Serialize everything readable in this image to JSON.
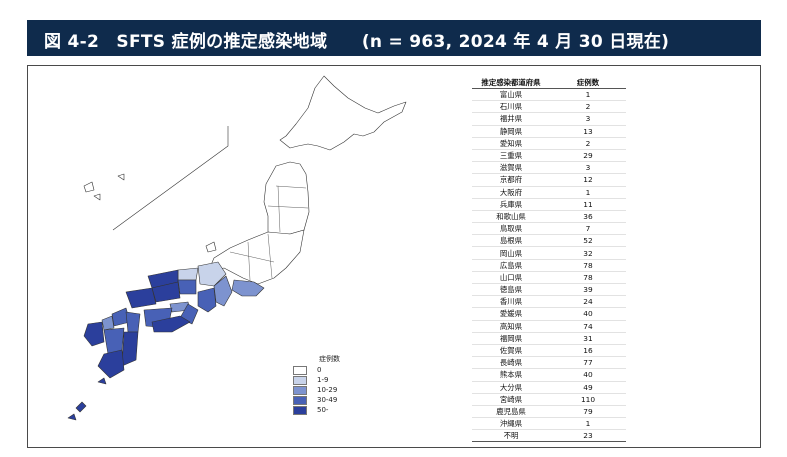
{
  "header": {
    "title": "図 4-2　SFTS 症例の推定感染地域　　(n = 963,  2024 年 4 月 30 日現在)"
  },
  "colors": {
    "header_bg": "#0f2b4c",
    "c0": "#ffffff",
    "c1": "#c8d3ea",
    "c2": "#7d93cf",
    "c3": "#4861b6",
    "c4": "#2b3f9c"
  },
  "legend": {
    "title": "症例数",
    "items": [
      {
        "label": "0",
        "color": "#ffffff"
      },
      {
        "label": "1-9",
        "color": "#c8d3ea"
      },
      {
        "label": "10-29",
        "color": "#7d93cf"
      },
      {
        "label": "30-49",
        "color": "#4861b6"
      },
      {
        "label": "50-",
        "color": "#2b3f9c"
      }
    ]
  },
  "table": {
    "headers": [
      "推定感染都道府県",
      "症例数"
    ],
    "rows": [
      [
        "富山県",
        "1"
      ],
      [
        "石川県",
        "2"
      ],
      [
        "福井県",
        "3"
      ],
      [
        "静岡県",
        "13"
      ],
      [
        "愛知県",
        "2"
      ],
      [
        "三重県",
        "29"
      ],
      [
        "滋賀県",
        "3"
      ],
      [
        "京都府",
        "12"
      ],
      [
        "大阪府",
        "1"
      ],
      [
        "兵庫県",
        "11"
      ],
      [
        "和歌山県",
        "36"
      ],
      [
        "鳥取県",
        "7"
      ],
      [
        "島根県",
        "52"
      ],
      [
        "岡山県",
        "32"
      ],
      [
        "広島県",
        "78"
      ],
      [
        "山口県",
        "78"
      ],
      [
        "徳島県",
        "39"
      ],
      [
        "香川県",
        "24"
      ],
      [
        "愛媛県",
        "40"
      ],
      [
        "高知県",
        "74"
      ],
      [
        "福岡県",
        "31"
      ],
      [
        "佐賀県",
        "16"
      ],
      [
        "長崎県",
        "77"
      ],
      [
        "熊本県",
        "40"
      ],
      [
        "大分県",
        "49"
      ],
      [
        "宮崎県",
        "110"
      ],
      [
        "鹿児島県",
        "79"
      ],
      [
        "沖縄県",
        "1"
      ],
      [
        "不明",
        "23"
      ]
    ]
  }
}
